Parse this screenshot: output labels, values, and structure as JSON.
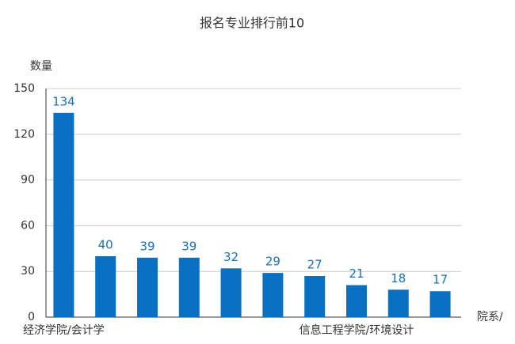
{
  "chart_data": {
    "type": "bar",
    "title": "报名专业排行前10",
    "y_label": "数量",
    "x_label": "院系/",
    "categories": [
      "经济学院/会计学",
      null,
      null,
      null,
      null,
      null,
      null,
      "信息工程学院/环境设计",
      null,
      null
    ],
    "values": [
      134,
      40,
      39,
      39,
      32,
      29,
      27,
      21,
      18,
      17
    ],
    "color": "#0a70c2",
    "label_color": "#1b72b8",
    "ylim": [
      0,
      150
    ],
    "yticks": [
      0,
      30,
      60,
      90,
      120,
      150
    ],
    "grid": true
  }
}
